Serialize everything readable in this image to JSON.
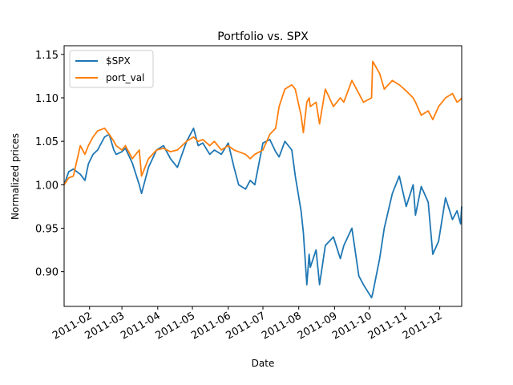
{
  "chart_data": {
    "type": "line",
    "title": "Portfolio vs. SPX",
    "xlabel": "Date",
    "ylabel": "Normalized prices",
    "xlim": [
      "2011-01-10",
      "2011-12-20"
    ],
    "ylim": [
      0.86,
      1.16
    ],
    "y_ticks": [
      0.9,
      0.95,
      1.0,
      1.05,
      1.1,
      1.15
    ],
    "y_tick_labels": [
      "0.90",
      "0.95",
      "1.00",
      "1.05",
      "1.10",
      "1.15"
    ],
    "x_ticks": [
      "2011-02-01",
      "2011-03-01",
      "2011-04-01",
      "2011-05-01",
      "2011-06-01",
      "2011-07-01",
      "2011-08-01",
      "2011-09-01",
      "2011-10-01",
      "2011-11-01",
      "2011-12-01"
    ],
    "x_tick_labels": [
      "2011-02",
      "2011-03",
      "2011-04",
      "2011-05",
      "2011-06",
      "2011-07",
      "2011-08",
      "2011-09",
      "2011-10",
      "2011-11",
      "2011-12"
    ],
    "grid": false,
    "legend_position": "top-left",
    "series": [
      {
        "name": "$SPX",
        "color": "#1f77b4",
        "x": [
          "2011-01-10",
          "2011-01-14",
          "2011-01-18",
          "2011-01-24",
          "2011-01-28",
          "2011-01-31",
          "2011-02-04",
          "2011-02-08",
          "2011-02-14",
          "2011-02-18",
          "2011-02-22",
          "2011-02-24",
          "2011-03-01",
          "2011-03-04",
          "2011-03-10",
          "2011-03-16",
          "2011-03-18",
          "2011-03-24",
          "2011-03-31",
          "2011-04-06",
          "2011-04-12",
          "2011-04-18",
          "2011-04-26",
          "2011-05-02",
          "2011-05-06",
          "2011-05-10",
          "2011-05-16",
          "2011-05-20",
          "2011-05-26",
          "2011-06-01",
          "2011-06-06",
          "2011-06-10",
          "2011-06-16",
          "2011-06-20",
          "2011-06-24",
          "2011-07-01",
          "2011-07-07",
          "2011-07-12",
          "2011-07-15",
          "2011-07-20",
          "2011-07-26",
          "2011-07-29",
          "2011-08-03",
          "2011-08-05",
          "2011-08-08",
          "2011-08-10",
          "2011-08-11",
          "2011-08-16",
          "2011-08-19",
          "2011-08-24",
          "2011-08-31",
          "2011-09-06",
          "2011-09-09",
          "2011-09-16",
          "2011-09-22",
          "2011-09-26",
          "2011-10-03",
          "2011-10-04",
          "2011-10-10",
          "2011-10-14",
          "2011-10-21",
          "2011-10-27",
          "2011-11-02",
          "2011-11-08",
          "2011-11-10",
          "2011-11-15",
          "2011-11-21",
          "2011-11-25",
          "2011-11-30",
          "2011-12-06",
          "2011-12-12",
          "2011-12-16",
          "2011-12-19",
          "2011-12-20"
        ],
        "values": [
          1.0,
          1.015,
          1.018,
          1.012,
          1.005,
          1.024,
          1.035,
          1.04,
          1.055,
          1.058,
          1.04,
          1.035,
          1.038,
          1.042,
          1.025,
          1.0,
          0.99,
          1.02,
          1.04,
          1.045,
          1.03,
          1.02,
          1.05,
          1.065,
          1.045,
          1.048,
          1.035,
          1.04,
          1.035,
          1.048,
          1.02,
          1.0,
          0.995,
          1.005,
          1.0,
          1.048,
          1.052,
          1.038,
          1.032,
          1.05,
          1.04,
          1.01,
          0.97,
          0.945,
          0.885,
          0.92,
          0.905,
          0.925,
          0.885,
          0.93,
          0.94,
          0.915,
          0.93,
          0.95,
          0.895,
          0.885,
          0.87,
          0.875,
          0.915,
          0.95,
          0.99,
          1.01,
          0.975,
          1.0,
          0.965,
          0.998,
          0.98,
          0.92,
          0.935,
          0.985,
          0.96,
          0.97,
          0.955,
          0.975
        ]
      },
      {
        "name": "port_val",
        "color": "#ff7f0e",
        "x": [
          "2011-01-10",
          "2011-01-14",
          "2011-01-18",
          "2011-01-24",
          "2011-01-28",
          "2011-01-31",
          "2011-02-04",
          "2011-02-08",
          "2011-02-14",
          "2011-02-18",
          "2011-02-22",
          "2011-02-24",
          "2011-03-01",
          "2011-03-04",
          "2011-03-10",
          "2011-03-16",
          "2011-03-18",
          "2011-03-24",
          "2011-03-31",
          "2011-04-06",
          "2011-04-12",
          "2011-04-18",
          "2011-04-26",
          "2011-05-02",
          "2011-05-06",
          "2011-05-10",
          "2011-05-16",
          "2011-05-20",
          "2011-05-26",
          "2011-06-01",
          "2011-06-06",
          "2011-06-10",
          "2011-06-16",
          "2011-06-20",
          "2011-06-24",
          "2011-07-01",
          "2011-07-07",
          "2011-07-12",
          "2011-07-15",
          "2011-07-20",
          "2011-07-26",
          "2011-07-29",
          "2011-08-03",
          "2011-08-05",
          "2011-08-08",
          "2011-08-10",
          "2011-08-11",
          "2011-08-16",
          "2011-08-19",
          "2011-08-24",
          "2011-08-31",
          "2011-09-06",
          "2011-09-09",
          "2011-09-16",
          "2011-09-22",
          "2011-09-26",
          "2011-10-03",
          "2011-10-04",
          "2011-10-10",
          "2011-10-14",
          "2011-10-21",
          "2011-10-27",
          "2011-11-02",
          "2011-11-08",
          "2011-11-10",
          "2011-11-15",
          "2011-11-21",
          "2011-11-25",
          "2011-11-30",
          "2011-12-06",
          "2011-12-12",
          "2011-12-16",
          "2011-12-19",
          "2011-12-20"
        ],
        "values": [
          1.0,
          1.008,
          1.01,
          1.045,
          1.035,
          1.045,
          1.055,
          1.062,
          1.065,
          1.058,
          1.05,
          1.045,
          1.04,
          1.045,
          1.03,
          1.04,
          1.01,
          1.03,
          1.04,
          1.042,
          1.038,
          1.04,
          1.05,
          1.055,
          1.05,
          1.052,
          1.045,
          1.05,
          1.04,
          1.045,
          1.04,
          1.038,
          1.035,
          1.03,
          1.035,
          1.04,
          1.058,
          1.065,
          1.09,
          1.11,
          1.115,
          1.11,
          1.08,
          1.06,
          1.095,
          1.1,
          1.09,
          1.095,
          1.07,
          1.11,
          1.09,
          1.1,
          1.095,
          1.12,
          1.105,
          1.095,
          1.1,
          1.142,
          1.128,
          1.11,
          1.12,
          1.115,
          1.108,
          1.1,
          1.095,
          1.08,
          1.085,
          1.075,
          1.09,
          1.1,
          1.105,
          1.095,
          1.098,
          1.1
        ]
      }
    ]
  }
}
